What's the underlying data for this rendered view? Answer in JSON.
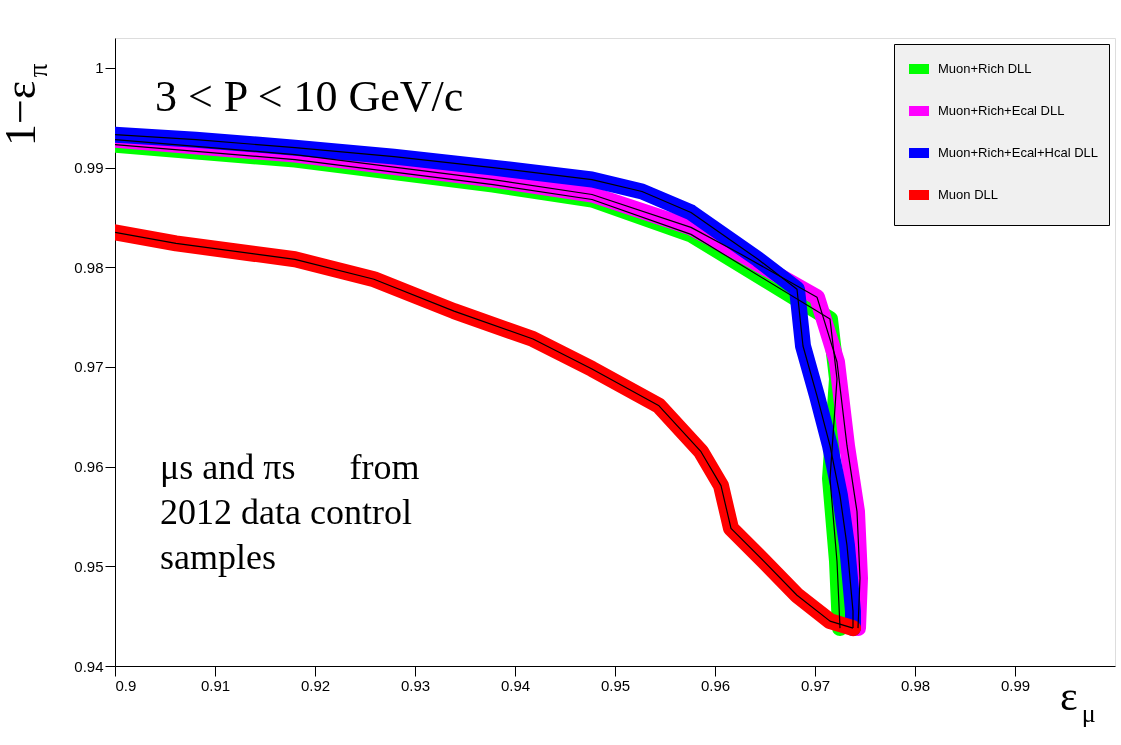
{
  "chart_data": {
    "type": "line",
    "xlabel": "ε$_{μ}$",
    "ylabel": "1−ε$_{π}$",
    "annotations": [
      "3 < P < 10 GeV/c",
      "μs and πs      from\n2012 data control\nsamples"
    ],
    "xlim": [
      0.9,
      1.0
    ],
    "xticks": [
      0.9,
      0.91,
      0.92,
      0.93,
      0.94,
      0.95,
      0.96,
      0.97,
      0.98,
      0.99
    ],
    "ylim": [
      0.94,
      1.003
    ],
    "yticks": [
      0.94,
      0.95,
      0.96,
      0.97,
      0.98,
      0.99,
      1
    ],
    "grid": false,
    "legend": "top right",
    "marker": "none",
    "line_style": "solid",
    "series": [
      {
        "name": "Muon+Rich DLL",
        "color": "#00ff00",
        "x": [
          0.9,
          0.918,
          0.9378,
          0.9477,
          0.9576,
          0.9715,
          0.9722,
          0.9715,
          0.9722,
          0.9725
        ],
        "values": [
          0.9923,
          0.9908,
          0.9883,
          0.9868,
          0.9833,
          0.9748,
          0.9688,
          0.9588,
          0.9505,
          0.9438
        ]
      },
      {
        "name": "Muon+Rich+Ecal DLL",
        "color": "#ff00ff",
        "x": [
          0.9,
          0.918,
          0.9378,
          0.9477,
          0.9576,
          0.9626,
          0.9702,
          0.9722,
          0.9732,
          0.9742,
          0.9745,
          0.9743
        ],
        "values": [
          0.9928,
          0.9913,
          0.9888,
          0.9873,
          0.984,
          0.9813,
          0.977,
          0.9705,
          0.9621,
          0.9555,
          0.9488,
          0.9438
        ]
      },
      {
        "name": "Muon+Rich+Ecal+Hcal DLL",
        "color": "#0000ff",
        "x": [
          0.9,
          0.9081,
          0.918,
          0.9279,
          0.9378,
          0.9477,
          0.9527,
          0.9576,
          0.9643,
          0.9682,
          0.9688,
          0.9702,
          0.9715,
          0.9725,
          0.9732,
          0.9738,
          0.9738
        ],
        "values": [
          0.9933,
          0.9928,
          0.992,
          0.9911,
          0.99,
          0.9888,
          0.9876,
          0.9855,
          0.9808,
          0.9778,
          0.9721,
          0.9671,
          0.9621,
          0.9571,
          0.9521,
          0.9455,
          0.9438
        ]
      },
      {
        "name": "Muon DLL",
        "color": "#ff0000",
        "x": [
          0.9,
          0.9061,
          0.918,
          0.9259,
          0.9339,
          0.9418,
          0.9477,
          0.9544,
          0.9586,
          0.9606,
          0.9616,
          0.9649,
          0.9682,
          0.9715,
          0.9738
        ],
        "values": [
          0.9835,
          0.9824,
          0.9808,
          0.9788,
          0.9756,
          0.9728,
          0.9698,
          0.9661,
          0.9615,
          0.9581,
          0.9538,
          0.9505,
          0.9471,
          0.9445,
          0.9438
        ]
      }
    ]
  }
}
